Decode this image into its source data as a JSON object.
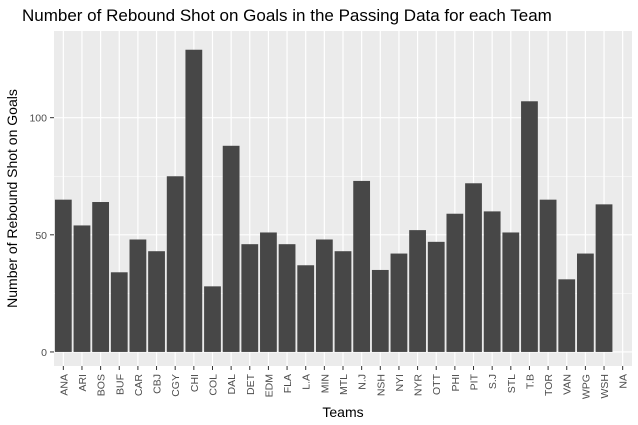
{
  "chart_data": {
    "type": "bar",
    "title": "Number of Rebound Shot on Goals in the Passing Data for each Team",
    "xlabel": "Teams",
    "ylabel": "Number of Rebound Shot on Goals",
    "categories": [
      "ANA",
      "ARI",
      "BOS",
      "BUF",
      "CAR",
      "CBJ",
      "CGY",
      "CHI",
      "COL",
      "DAL",
      "DET",
      "EDM",
      "FLA",
      "L.A",
      "MIN",
      "MTL",
      "N.J",
      "NSH",
      "NYI",
      "NYR",
      "OTT",
      "PHI",
      "PIT",
      "S.J",
      "STL",
      "T.B",
      "TOR",
      "VAN",
      "WPG",
      "WSH",
      "NA"
    ],
    "values": [
      65,
      54,
      64,
      34,
      48,
      43,
      75,
      129,
      28,
      88,
      46,
      51,
      46,
      37,
      48,
      43,
      73,
      35,
      42,
      52,
      47,
      59,
      72,
      60,
      51,
      107,
      65,
      31,
      42,
      63,
      0
    ],
    "yticks": [
      0,
      50,
      100
    ],
    "ylim": [
      -6,
      137
    ],
    "grid": true,
    "colors": {
      "bar": "#474747",
      "panel": "#ebebeb",
      "grid": "#ffffff"
    }
  }
}
